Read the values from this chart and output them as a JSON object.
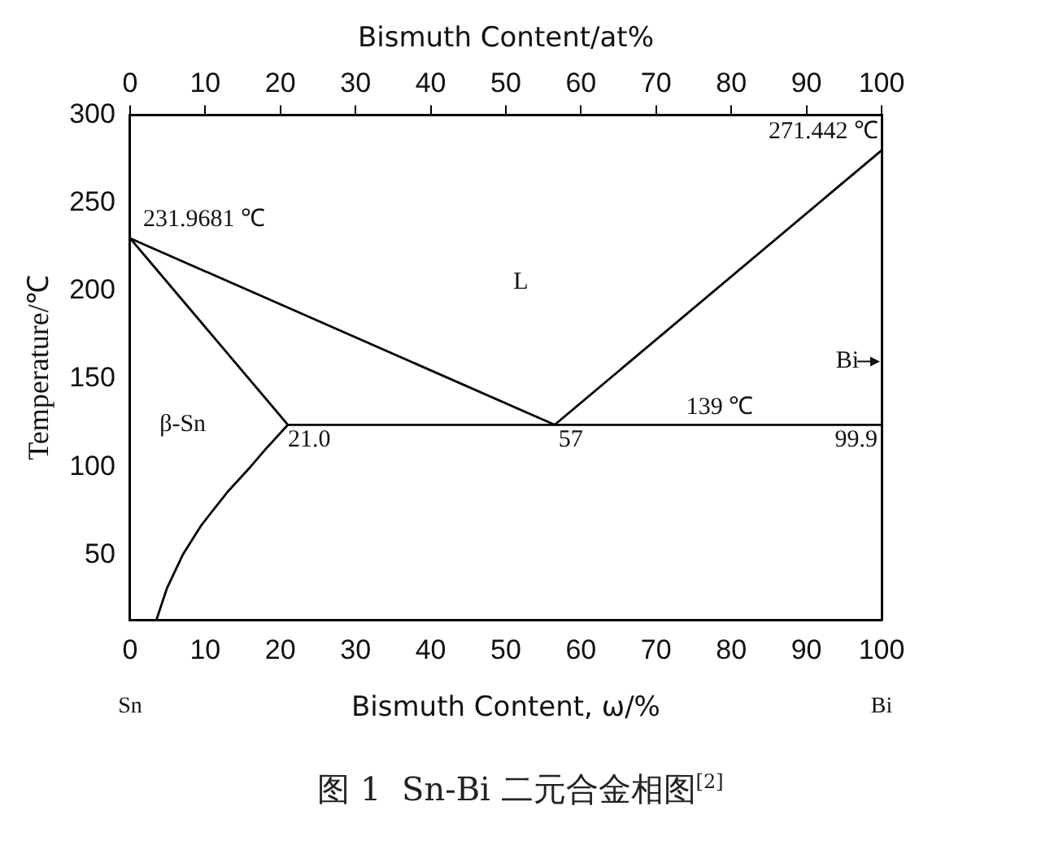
{
  "chart_data": {
    "type": "line",
    "title": "图 1  Sn-Bi 二元合金相图$^{[2]}$",
    "xlabel": "Bismuth Content, ω/%",
    "x2label": "Bismuth Content/at%",
    "ylabel": "Temperature/℃",
    "xlim": [
      0,
      100
    ],
    "xticks": [
      0,
      10,
      20,
      30,
      40,
      50,
      60,
      70,
      80,
      90,
      100
    ],
    "x2lim": [
      0,
      100
    ],
    "x2ticks": [
      0,
      10,
      20,
      30,
      40,
      50,
      60,
      70,
      80,
      90,
      100
    ],
    "ylim": [
      13,
      300
    ],
    "yticks": [
      50,
      100,
      150,
      200,
      250,
      300
    ],
    "series": [
      {
        "color": "#000000",
        "x": [
          0,
          56.5
        ],
        "values": [
          230,
          124
        ]
      },
      {
        "color": "#000000",
        "x": [
          56.5,
          100
        ],
        "values": [
          124,
          280
        ]
      },
      {
        "color": "#000000",
        "x": [
          0,
          21
        ],
        "values": [
          230,
          124
        ]
      },
      {
        "color": "#000000",
        "x": [
          21,
          100
        ],
        "values": [
          124,
          124
        ]
      },
      {
        "color": "#000000",
        "x": [
          21,
          18,
          16,
          13,
          9.5,
          7,
          4.9,
          3.5
        ],
        "values": [
          124,
          110,
          100,
          86,
          67,
          50,
          31,
          13
        ]
      }
    ],
    "annotations": [
      {
        "text": "231.9681 ℃",
        "x": 0,
        "y": 230
      },
      {
        "text": "271.442 ℃",
        "x": 100,
        "y": 280
      },
      "L",
      "Bi",
      "β-Sn",
      {
        "text": "21.0",
        "x": 21,
        "y": 124
      },
      {
        "text": "57",
        "x": 57,
        "y": 124
      },
      {
        "text": "139 ℃",
        "x": 74,
        "y": 124
      },
      {
        "text": "99.9",
        "x": 99.9,
        "y": 124
      },
      "Sn",
      "Bi"
    ],
    "legend": false,
    "grid": false,
    "marker": "none",
    "line_style": "solid"
  }
}
